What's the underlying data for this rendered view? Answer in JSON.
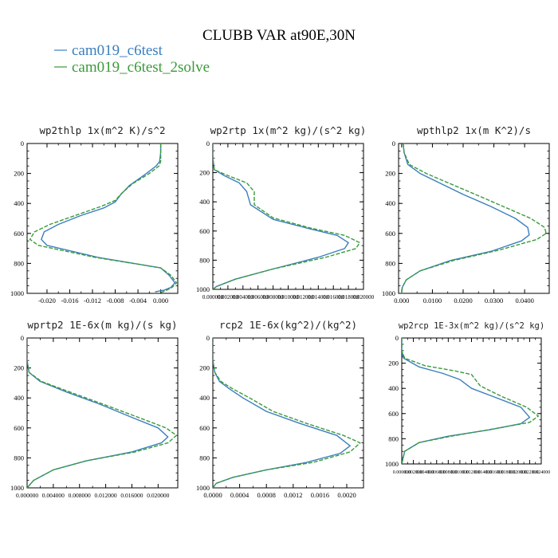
{
  "title": "CLUBB VAR at90E,30N",
  "legend": [
    {
      "name": "cam019_c6test",
      "color": "#3a7fbf",
      "style": "solid"
    },
    {
      "name": "cam019_c6test_2solve",
      "color": "#3a9a3a",
      "style": "dashed"
    }
  ],
  "chart_data": [
    {
      "type": "line",
      "title": "wp2thlp  1x(m^2 K)/s^2",
      "xlim": [
        -0.0235,
        0.003
      ],
      "ylim": [
        0,
        1000
      ],
      "y_inverted": true,
      "xticks": [
        -0.02,
        -0.016,
        -0.012,
        -0.008,
        -0.004,
        0.0
      ],
      "xtick_labels": [
        "-0.020",
        "-0.016",
        "-0.012",
        "-0.008",
        "-0.004",
        "0.000"
      ],
      "yticks": [
        0,
        200,
        400,
        600,
        800,
        1000
      ],
      "series": [
        {
          "name": "cam019_c6test",
          "x": [
            0.0,
            0.0,
            -0.0002,
            -0.0008,
            -0.0025,
            -0.0055,
            -0.007,
            -0.008,
            -0.01,
            -0.014,
            -0.018,
            -0.0205,
            -0.021,
            -0.02,
            -0.011,
            0.0,
            0.0015,
            0.0025,
            0.0018,
            0.0005,
            -0.001
          ],
          "y": [
            0,
            60,
            120,
            150,
            200,
            280,
            340,
            390,
            430,
            480,
            540,
            590,
            640,
            680,
            760,
            830,
            880,
            930,
            960,
            980,
            990
          ]
        },
        {
          "name": "cam019_c6test_2solve",
          "x": [
            0.0,
            0.0,
            0.0,
            -0.0003,
            -0.002,
            -0.005,
            -0.0068,
            -0.008,
            -0.0105,
            -0.015,
            -0.0195,
            -0.0222,
            -0.023,
            -0.0215,
            -0.0115,
            0.0,
            0.0018,
            0.0028,
            0.002,
            0.001,
            0.0
          ],
          "y": [
            0,
            60,
            120,
            150,
            200,
            270,
            330,
            380,
            420,
            480,
            540,
            590,
            640,
            680,
            760,
            830,
            880,
            930,
            960,
            980,
            995
          ]
        }
      ]
    },
    {
      "type": "line",
      "title": "wp2rtp  1x(m^2 kg)/(s^2 kg)",
      "xlim": [
        0.0,
        0.02
      ],
      "ylim": [
        0,
        1000
      ],
      "y_inverted": true,
      "xticks": [
        0.0,
        0.002,
        0.004,
        0.006,
        0.008,
        0.01,
        0.012,
        0.014,
        0.016,
        0.018,
        0.02
      ],
      "xtick_labels": [
        "0.000000",
        "0.002000",
        "0.004000",
        "0.006000",
        "0.008000",
        "0.010000",
        "0.012000",
        "0.014000",
        "0.016000",
        "0.018000",
        "0.020000"
      ],
      "yticks": [
        0,
        200,
        400,
        600,
        800,
        1000
      ],
      "series": [
        {
          "name": "cam019_c6test",
          "x": [
            0.0,
            0.0,
            0.0002,
            0.0015,
            0.0035,
            0.0045,
            0.005,
            0.008,
            0.0125,
            0.0165,
            0.018,
            0.0175,
            0.014,
            0.008,
            0.003,
            0.0005,
            0.0
          ],
          "y": [
            0,
            100,
            180,
            220,
            270,
            330,
            420,
            520,
            580,
            630,
            680,
            720,
            780,
            860,
            930,
            980,
            1000
          ]
        },
        {
          "name": "cam019_c6test_2solve",
          "x": [
            0.0,
            0.0,
            0.0002,
            0.002,
            0.0045,
            0.0055,
            0.0055,
            0.008,
            0.013,
            0.0175,
            0.0195,
            0.019,
            0.015,
            0.008,
            0.003,
            0.0005,
            0.0
          ],
          "y": [
            0,
            100,
            180,
            220,
            270,
            330,
            420,
            510,
            580,
            630,
            680,
            720,
            780,
            860,
            930,
            980,
            1000
          ]
        }
      ]
    },
    {
      "type": "line",
      "title": "wpthlp2  1x(m K^2)/s",
      "xlim": [
        -0.001,
        0.048
      ],
      "ylim": [
        0,
        1000
      ],
      "y_inverted": true,
      "xticks": [
        0.0,
        0.01,
        0.02,
        0.03,
        0.04
      ],
      "xtick_labels": [
        "0.000",
        "0.0100",
        "0.0200",
        "0.0300",
        "0.0400"
      ],
      "yticks": [
        0,
        200,
        400,
        600,
        800,
        1000
      ],
      "series": [
        {
          "name": "cam019_c6test",
          "x": [
            0.0005,
            0.0008,
            0.002,
            0.006,
            0.013,
            0.02,
            0.029,
            0.037,
            0.041,
            0.0415,
            0.039,
            0.029,
            0.016,
            0.006,
            0.0015,
            0.0002,
            0.0
          ],
          "y": [
            0,
            60,
            140,
            200,
            270,
            340,
            420,
            500,
            560,
            610,
            650,
            720,
            780,
            850,
            910,
            960,
            1000
          ]
        },
        {
          "name": "cam019_c6test_2solve",
          "x": [
            0.0005,
            0.0008,
            0.0025,
            0.008,
            0.016,
            0.024,
            0.033,
            0.042,
            0.0465,
            0.047,
            0.044,
            0.032,
            0.017,
            0.006,
            0.0015,
            0.0002,
            0.0
          ],
          "y": [
            0,
            60,
            140,
            200,
            270,
            340,
            420,
            500,
            560,
            600,
            640,
            710,
            780,
            850,
            910,
            960,
            1000
          ]
        }
      ]
    },
    {
      "type": "line",
      "title": "wprtp2  1E-6x(m kg)/(s kg)",
      "xlim": [
        0.0,
        0.023
      ],
      "ylim": [
        0,
        1000
      ],
      "y_inverted": true,
      "xticks": [
        0.0,
        0.004,
        0.008,
        0.012,
        0.016,
        0.02
      ],
      "xtick_labels": [
        "0.000000",
        "0.004000",
        "0.008000",
        "0.012000",
        "0.016000",
        "0.020000"
      ],
      "yticks": [
        0,
        200,
        400,
        600,
        800,
        1000
      ],
      "series": [
        {
          "name": "cam019_c6test",
          "x": [
            0.0,
            0.0,
            0.0003,
            0.002,
            0.006,
            0.011,
            0.016,
            0.02,
            0.0215,
            0.0205,
            0.016,
            0.009,
            0.004,
            0.001,
            0.0
          ],
          "y": [
            0,
            150,
            230,
            290,
            360,
            440,
            530,
            600,
            660,
            700,
            760,
            820,
            880,
            950,
            1000
          ]
        },
        {
          "name": "cam019_c6test_2solve",
          "x": [
            0.0,
            0.0,
            0.0003,
            0.0022,
            0.0065,
            0.0115,
            0.017,
            0.0212,
            0.0228,
            0.0215,
            0.0165,
            0.009,
            0.004,
            0.001,
            0.0
          ],
          "y": [
            0,
            150,
            230,
            290,
            360,
            440,
            530,
            600,
            650,
            700,
            760,
            820,
            880,
            950,
            1000
          ]
        }
      ]
    },
    {
      "type": "line",
      "title": "rcp2  1E-6x(kg^2)/(kg^2)",
      "xlim": [
        0.0,
        0.00225
      ],
      "ylim": [
        0,
        1000
      ],
      "y_inverted": true,
      "xticks": [
        0.0,
        0.0004,
        0.0008,
        0.0012,
        0.0016,
        0.002
      ],
      "xtick_labels": [
        "0.0000",
        "0.0004",
        "0.0008",
        "0.0012",
        "0.0016",
        "0.0020"
      ],
      "yticks": [
        0,
        200,
        400,
        600,
        800,
        1000
      ],
      "series": [
        {
          "name": "cam019_c6test",
          "x": [
            0.0,
            0.0,
            3e-05,
            0.0001,
            0.00025,
            0.00045,
            0.0008,
            0.0013,
            0.00185,
            0.00205,
            0.0019,
            0.0014,
            0.0008,
            0.0003,
            5e-05,
            0.0
          ],
          "y": [
            0,
            150,
            230,
            290,
            340,
            400,
            490,
            570,
            650,
            720,
            770,
            830,
            880,
            930,
            970,
            1000
          ]
        },
        {
          "name": "cam019_c6test_2solve",
          "x": [
            0.0,
            0.0,
            3e-05,
            0.00012,
            0.0003,
            0.00055,
            0.0009,
            0.0014,
            0.00195,
            0.0022,
            0.00205,
            0.0015,
            0.0008,
            0.0003,
            5e-05,
            0.0
          ],
          "y": [
            0,
            150,
            230,
            290,
            340,
            400,
            490,
            570,
            650,
            700,
            760,
            830,
            880,
            930,
            970,
            1000
          ]
        }
      ]
    },
    {
      "type": "line",
      "title": "wp2rcp  1E-3x(m^2 kg)/(s^2 kg)",
      "xlim": [
        0.0,
        0.024
      ],
      "ylim": [
        0,
        1000
      ],
      "y_inverted": true,
      "xticks": [
        0.0,
        0.002,
        0.004,
        0.006,
        0.008,
        0.01,
        0.012,
        0.014,
        0.016,
        0.018,
        0.02,
        0.022,
        0.024
      ],
      "xtick_labels": [
        "0.000000",
        "0.002000",
        "0.004000",
        "0.006000",
        "0.008000",
        "0.010000",
        "0.012000",
        "0.014000",
        "0.016000",
        "0.018000",
        "0.020000",
        "0.022000",
        "0.024000"
      ],
      "yticks": [
        0,
        200,
        400,
        600,
        800,
        1000
      ],
      "series": [
        {
          "name": "cam019_c6test",
          "x": [
            0.0,
            0.0,
            0.0003,
            0.003,
            0.007,
            0.01,
            0.012,
            0.016,
            0.0205,
            0.022,
            0.0205,
            0.015,
            0.008,
            0.003,
            0.0005,
            0.0
          ],
          "y": [
            0,
            100,
            160,
            230,
            280,
            330,
            400,
            470,
            550,
            630,
            680,
            730,
            780,
            830,
            900,
            1000
          ]
        },
        {
          "name": "cam019_c6test_2solve",
          "x": [
            0.0,
            0.0,
            0.0005,
            0.004,
            0.009,
            0.012,
            0.0135,
            0.017,
            0.0215,
            0.0235,
            0.022,
            0.016,
            0.0085,
            0.003,
            0.0005,
            0.0
          ],
          "y": [
            0,
            100,
            160,
            220,
            260,
            290,
            380,
            460,
            550,
            620,
            670,
            720,
            780,
            830,
            900,
            1000
          ]
        }
      ]
    }
  ]
}
